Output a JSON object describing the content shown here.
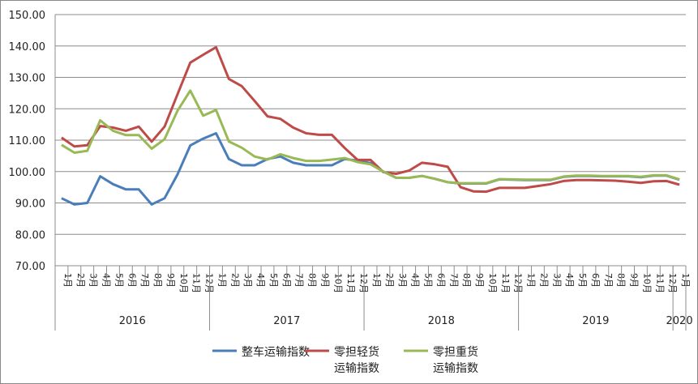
{
  "chart_data": {
    "type": "line",
    "title": "",
    "xlabel": "",
    "ylabel": "",
    "ylim": [
      70,
      150
    ],
    "yticks": [
      "70.00",
      "80.00",
      "90.00",
      "100.00",
      "110.00",
      "120.00",
      "130.00",
      "140.00",
      "150.00"
    ],
    "grid": true,
    "legend_position": "bottom",
    "years": [
      {
        "label": "2016",
        "months": 12
      },
      {
        "label": "2017",
        "months": 12
      },
      {
        "label": "2018",
        "months": 12
      },
      {
        "label": "2019",
        "months": 12
      },
      {
        "label": "2020",
        "months": 1
      }
    ],
    "month_labels": [
      "1月",
      "2月",
      "3月",
      "4月",
      "5月",
      "6月",
      "7月",
      "8月",
      "9月",
      "10月",
      "11月",
      "12月"
    ],
    "series": [
      {
        "name": "整车运输指数",
        "legend_lines": [
          "整车运输指数"
        ],
        "color": "#4a7ebb",
        "values": [
          91.5,
          89.5,
          90,
          98.5,
          96,
          94.3,
          94.3,
          89.5,
          91.5,
          99,
          108.3,
          110.5,
          112.2,
          104,
          102,
          102,
          104,
          104.8,
          102.8,
          102,
          102,
          102,
          104,
          103.5,
          102.7,
          100,
          98,
          98,
          98.6,
          97.7,
          96.6,
          96.2,
          96.2,
          96.2,
          97.5,
          97.4,
          97.3,
          97.3,
          97.3,
          98.3,
          98.6,
          98.6,
          98.5,
          98.5,
          98.5,
          98.2,
          98.7,
          98.7,
          97.4
        ]
      },
      {
        "name": "零担轻货运输指数",
        "legend_lines": [
          "零担轻货",
          "运输指数"
        ],
        "color": "#be4b48",
        "values": [
          110.8,
          108,
          108.4,
          114.5,
          114,
          113,
          114.3,
          109.5,
          114.3,
          124.5,
          134.7,
          137.2,
          139.6,
          129.5,
          127.2,
          122.5,
          117.6,
          116.8,
          114,
          112.2,
          111.7,
          111.7,
          107.5,
          103.7,
          103.7,
          99.8,
          99.3,
          100.3,
          102.8,
          102.3,
          101.5,
          95,
          93.7,
          93.6,
          94.8,
          94.8,
          94.8,
          95.4,
          96,
          97,
          97.3,
          97.3,
          97.2,
          97.1,
          96.8,
          96.4,
          96.9,
          97,
          95.8
        ]
      },
      {
        "name": "零担重货运输指数",
        "legend_lines": [
          "零担重货",
          "运输指数"
        ],
        "color": "#98b954",
        "values": [
          108.5,
          106,
          106.6,
          116.3,
          113,
          111.6,
          111.6,
          107.3,
          110.3,
          119.3,
          125.8,
          117.8,
          119.6,
          109.6,
          107.6,
          104.8,
          103.8,
          105.5,
          104.3,
          103.4,
          103.4,
          103.8,
          104.3,
          103,
          102.3,
          100,
          98,
          98,
          98.6,
          97.7,
          96.6,
          96.3,
          96.3,
          96.3,
          97.6,
          97.5,
          97.4,
          97.4,
          97.4,
          98.4,
          98.7,
          98.7,
          98.6,
          98.6,
          98.6,
          98.3,
          98.8,
          98.8,
          97.5
        ]
      }
    ]
  }
}
